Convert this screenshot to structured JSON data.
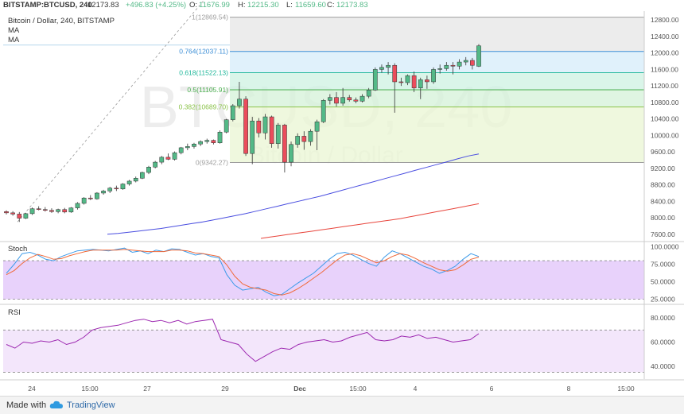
{
  "header": {
    "symbol": "BITSTAMP:BTCUSD, 240",
    "last": "12173.83",
    "change": "+496.83 (+4.25%)",
    "o_label": "O:",
    "o": "11676.99",
    "h_label": "H:",
    "h": "12215.30",
    "l_label": "L:",
    "l": "11659.60",
    "c_label": "C:",
    "c": "12173.83"
  },
  "legend": [
    "Bitcoin / Dollar, 240, BITSTAMP",
    "MA",
    "MA"
  ],
  "watermark": {
    "line1": "BTCUSD, 240",
    "line2": "Bitcoin / Dollar"
  },
  "panes": {
    "stoch_label": "Stoch",
    "rsi_label": "RSI"
  },
  "footer": {
    "made_with": "Made with",
    "brand": "TradingView"
  },
  "colors": {
    "up": "#53b987",
    "down": "#eb4d5c",
    "ma_fast": "#4a4ee0",
    "ma_slow": "#e8453c",
    "stoch_k": "#3d9be9",
    "stoch_d": "#f06a3a",
    "rsi": "#9c27b0",
    "stoch_band": "#e8d2fb",
    "rsi_band": "#f3e6fb"
  },
  "chart_data": [
    {
      "type": "candlestick",
      "title": "Bitcoin / Dollar, 240, BITSTAMP",
      "y_ticks": [
        "12800.00",
        "12400.00",
        "12000.00",
        "11600.00",
        "11200.00",
        "10800.00",
        "10400.00",
        "10000.00",
        "9600.00",
        "9200.00",
        "8800.00",
        "8400.00",
        "8000.00",
        "7600.00"
      ],
      "ylim": [
        7500,
        12900
      ],
      "x_ticks": [
        "24",
        "15:00",
        "27",
        "29",
        "Dec",
        "15:00",
        "4",
        "6",
        "8",
        "15:00"
      ],
      "fibonacci": [
        {
          "level": "1",
          "price": 12869.54,
          "label": "1(12869.54)"
        },
        {
          "level": "0.764",
          "price": 12037.11,
          "label": "0.764(12037.11)"
        },
        {
          "level": "0.618",
          "price": 11522.13,
          "label": "0.618(11522.13)"
        },
        {
          "level": "0.5",
          "price": 11105.91,
          "label": "0.5(11105.91)"
        },
        {
          "level": "0.382",
          "price": 10689.7,
          "label": "0.382(10689.70)"
        },
        {
          "level": "0",
          "price": 9342.27,
          "label": "0(9342.27)"
        }
      ],
      "ohlc": [
        [
          8150,
          8180,
          8080,
          8120
        ],
        [
          8120,
          8160,
          8050,
          8090
        ],
        [
          8090,
          8140,
          7900,
          7990
        ],
        [
          7990,
          8120,
          7970,
          8100
        ],
        [
          8100,
          8250,
          8070,
          8220
        ],
        [
          8220,
          8280,
          8180,
          8200
        ],
        [
          8200,
          8260,
          8150,
          8180
        ],
        [
          8180,
          8230,
          8120,
          8150
        ],
        [
          8150,
          8220,
          8110,
          8200
        ],
        [
          8200,
          8240,
          8110,
          8140
        ],
        [
          8140,
          8260,
          8120,
          8240
        ],
        [
          8240,
          8380,
          8200,
          8350
        ],
        [
          8350,
          8500,
          8320,
          8480
        ],
        [
          8480,
          8550,
          8430,
          8460
        ],
        [
          8460,
          8620,
          8440,
          8600
        ],
        [
          8600,
          8680,
          8560,
          8650
        ],
        [
          8650,
          8750,
          8600,
          8720
        ],
        [
          8720,
          8780,
          8650,
          8700
        ],
        [
          8700,
          8840,
          8680,
          8820
        ],
        [
          8820,
          8920,
          8780,
          8890
        ],
        [
          8890,
          9000,
          8860,
          8960
        ],
        [
          8960,
          9120,
          8940,
          9100
        ],
        [
          9100,
          9260,
          9060,
          9230
        ],
        [
          9230,
          9380,
          9200,
          9350
        ],
        [
          9350,
          9500,
          9300,
          9470
        ],
        [
          9470,
          9560,
          9400,
          9420
        ],
        [
          9420,
          9610,
          9390,
          9580
        ],
        [
          9580,
          9720,
          9540,
          9700
        ],
        [
          9700,
          9800,
          9640,
          9730
        ],
        [
          9730,
          9820,
          9680,
          9790
        ],
        [
          9790,
          9880,
          9740,
          9850
        ],
        [
          9850,
          9920,
          9800,
          9880
        ],
        [
          9880,
          9900,
          9780,
          9820
        ],
        [
          9820,
          10120,
          9800,
          10080
        ],
        [
          10080,
          10400,
          10050,
          10380
        ],
        [
          10380,
          10760,
          10340,
          10720
        ],
        [
          10720,
          11300,
          10650,
          10880
        ],
        [
          10880,
          10950,
          9500,
          9560
        ],
        [
          9560,
          10450,
          9300,
          10350
        ],
        [
          10350,
          10420,
          9950,
          10060
        ],
        [
          10060,
          10520,
          9900,
          10450
        ],
        [
          10450,
          10480,
          9700,
          9800
        ],
        [
          9800,
          10300,
          9680,
          10250
        ],
        [
          10250,
          10280,
          9100,
          9350
        ],
        [
          9350,
          9850,
          9250,
          9780
        ],
        [
          9780,
          10050,
          9700,
          9980
        ],
        [
          9980,
          10100,
          9650,
          9850
        ],
        [
          9850,
          10150,
          9750,
          10100
        ],
        [
          10100,
          10380,
          9640,
          10330
        ],
        [
          10330,
          10880,
          10300,
          10850
        ],
        [
          10850,
          11000,
          10750,
          10920
        ],
        [
          10920,
          11050,
          10700,
          10780
        ],
        [
          10780,
          11150,
          10720,
          10920
        ],
        [
          10920,
          10980,
          10820,
          10860
        ],
        [
          10860,
          10920,
          10780,
          10830
        ],
        [
          10830,
          11000,
          10800,
          10950
        ],
        [
          10950,
          11150,
          10900,
          11100
        ],
        [
          11100,
          11650,
          11080,
          11600
        ],
        [
          11600,
          11720,
          11520,
          11650
        ],
        [
          11650,
          11780,
          11480,
          11700
        ],
        [
          11700,
          11750,
          10550,
          11300
        ],
        [
          11300,
          11400,
          11200,
          11280
        ],
        [
          11280,
          11480,
          11220,
          11450
        ],
        [
          11450,
          11550,
          11050,
          11150
        ],
        [
          11150,
          11400,
          10880,
          11350
        ],
        [
          11350,
          11450,
          11130,
          11300
        ],
        [
          11300,
          11650,
          11250,
          11600
        ],
        [
          11600,
          11720,
          11500,
          11620
        ],
        [
          11620,
          11780,
          11570,
          11700
        ],
        [
          11700,
          11780,
          11480,
          11680
        ],
        [
          11680,
          11850,
          11600,
          11780
        ],
        [
          11780,
          11900,
          11700,
          11820
        ],
        [
          11820,
          11880,
          11600,
          11700
        ],
        [
          11676.99,
          12215.3,
          11659.6,
          12173.83
        ]
      ],
      "ma_fast": {
        "from": 9550,
        "to": 9550,
        "points": [
          7600,
          7620,
          7650,
          7680,
          7710,
          7740,
          7780,
          7820,
          7860,
          7900,
          7950,
          8000,
          8050,
          8100,
          8160,
          8220,
          8280,
          8340,
          8400,
          8460,
          8520,
          8590,
          8660,
          8730,
          8800,
          8870,
          8940,
          9010,
          9080,
          9150,
          9220,
          9290,
          9360,
          9430,
          9500,
          9550
        ]
      },
      "ma_slow": {
        "points": [
          7500,
          7530,
          7560,
          7590,
          7620,
          7650,
          7680,
          7710,
          7740,
          7770,
          7800,
          7830,
          7860,
          7890,
          7920,
          7950,
          7980,
          8020,
          8060,
          8100,
          8140,
          8180,
          8220,
          8260,
          8300,
          8340
        ]
      }
    },
    {
      "type": "line",
      "title": "Stoch",
      "y_ticks": [
        "100.0000",
        "75.0000",
        "50.0000",
        "25.0000"
      ],
      "ylim": [
        20,
        105
      ],
      "band": [
        25,
        80
      ],
      "series": [
        {
          "name": "K",
          "values": [
            62,
            75,
            90,
            92,
            88,
            82,
            80,
            86,
            90,
            94,
            95,
            96,
            95,
            94,
            96,
            98,
            92,
            94,
            90,
            95,
            93,
            97,
            96,
            92,
            88,
            90,
            86,
            84,
            60,
            45,
            38,
            40,
            42,
            35,
            30,
            32,
            40,
            48,
            55,
            62,
            72,
            82,
            90,
            92,
            88,
            82,
            76,
            72,
            85,
            94,
            90,
            84,
            78,
            72,
            68,
            62,
            66,
            72,
            82,
            90,
            86
          ]
        },
        {
          "name": "D",
          "values": [
            60,
            66,
            76,
            84,
            89,
            86,
            82,
            83,
            87,
            90,
            93,
            95,
            95,
            95,
            95,
            96,
            95,
            94,
            93,
            93,
            93,
            95,
            95,
            94,
            91,
            90,
            88,
            86,
            74,
            58,
            47,
            42,
            40,
            38,
            33,
            31,
            34,
            40,
            47,
            55,
            63,
            72,
            81,
            88,
            90,
            87,
            82,
            77,
            80,
            86,
            90,
            88,
            83,
            77,
            72,
            67,
            65,
            67,
            74,
            82,
            85
          ]
        }
      ]
    },
    {
      "type": "line",
      "title": "RSI",
      "y_ticks": [
        "80.0000",
        "60.0000",
        "40.0000"
      ],
      "ylim": [
        30,
        90
      ],
      "band": [
        35,
        70
      ],
      "series": [
        {
          "name": "RSI",
          "values": [
            58,
            55,
            60,
            59,
            61,
            60,
            62,
            58,
            60,
            64,
            70,
            72,
            73,
            74,
            76,
            78,
            79,
            77,
            78,
            76,
            78,
            75,
            77,
            78,
            79,
            62,
            60,
            58,
            50,
            44,
            48,
            52,
            55,
            54,
            58,
            60,
            61,
            62,
            60,
            61,
            64,
            66,
            68,
            62,
            61,
            62,
            65,
            64,
            66,
            63,
            64,
            62,
            60,
            61,
            62,
            67
          ]
        }
      ]
    }
  ]
}
